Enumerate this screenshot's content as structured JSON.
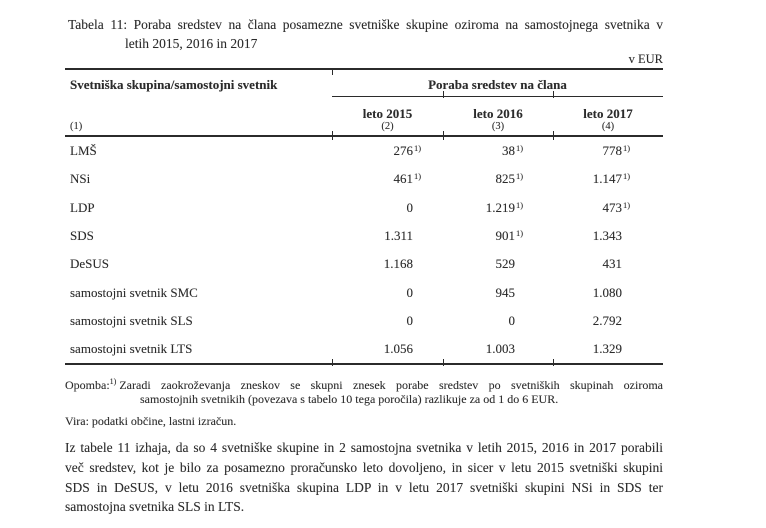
{
  "page": {
    "background": "#ffffff",
    "text_color": "#2b2b2b"
  },
  "caption": {
    "label": "Tabela 11:",
    "line1": "Poraba sredstev na člana posamezne svetniške skupine oziroma na samostojnega svetnika v",
    "line2": "letih 2015, 2016 in 2017"
  },
  "unit_label": "v EUR",
  "table": {
    "col1_header": "Svetniška skupina/samostojni svetnik",
    "group_header": "Poraba sredstev na člana",
    "year_headers": [
      "leto 2015",
      "leto 2016",
      "leto 2017"
    ],
    "col_markers": [
      "(1)",
      "(2)",
      "(3)",
      "(4)"
    ],
    "rows": [
      {
        "name": "LMŠ",
        "values": [
          {
            "v": "276",
            "sup": "1)"
          },
          {
            "v": "38",
            "sup": "1)"
          },
          {
            "v": "778",
            "sup": "1)"
          }
        ]
      },
      {
        "name": "NSi",
        "values": [
          {
            "v": "461",
            "sup": "1)"
          },
          {
            "v": "825",
            "sup": "1)"
          },
          {
            "v": "1.147",
            "sup": "1)"
          }
        ]
      },
      {
        "name": "LDP",
        "values": [
          {
            "v": "0"
          },
          {
            "v": "1.219",
            "sup": "1)"
          },
          {
            "v": "473",
            "sup": "1)"
          }
        ]
      },
      {
        "name": "SDS",
        "values": [
          {
            "v": "1.311"
          },
          {
            "v": "901",
            "sup": "1)"
          },
          {
            "v": "1.343"
          }
        ]
      },
      {
        "name": "DeSUS",
        "values": [
          {
            "v": "1.168"
          },
          {
            "v": "529"
          },
          {
            "v": "431"
          }
        ]
      },
      {
        "name": "samostojni svetnik SMC",
        "values": [
          {
            "v": "0"
          },
          {
            "v": "945"
          },
          {
            "v": "1.080"
          }
        ]
      },
      {
        "name": "samostojni svetnik SLS",
        "values": [
          {
            "v": "0"
          },
          {
            "v": "0"
          },
          {
            "v": "2.792"
          }
        ]
      },
      {
        "name": "samostojni svetnik LTS",
        "values": [
          {
            "v": "1.056"
          },
          {
            "v": "1.003"
          },
          {
            "v": "1.329"
          }
        ]
      }
    ]
  },
  "notes": {
    "opomba_label": "Opomba:",
    "opomba_sup": "1)",
    "opomba_line1": "Zaradi zaokroževanja zneskov se skupni znesek porabe sredstev po svetniških skupinah oziroma",
    "opomba_line2": "samostojnih svetnikih (povezava s tabelo 10 tega poročila) razlikuje za od 1 do 6 EUR.",
    "vira": "Vira: podatki občine, lastni izračun."
  },
  "paragraph": {
    "lines": [
      "Iz tabele 11 izhaja, da so 4 svetniške skupine in 2 samostojna svetnika v letih 2015, 2016 in 2017 porabili",
      "več sredstev, kot je bilo za posamezno proračunsko leto dovoljeno, in sicer v letu 2015 svetniški skupini",
      "SDS in DeSUS, v letu 2016 svetniška skupina LDP in v letu 2017 svetniški skupini NSi in SDS ter",
      "samostojna svetnika SLS in LTS."
    ]
  }
}
